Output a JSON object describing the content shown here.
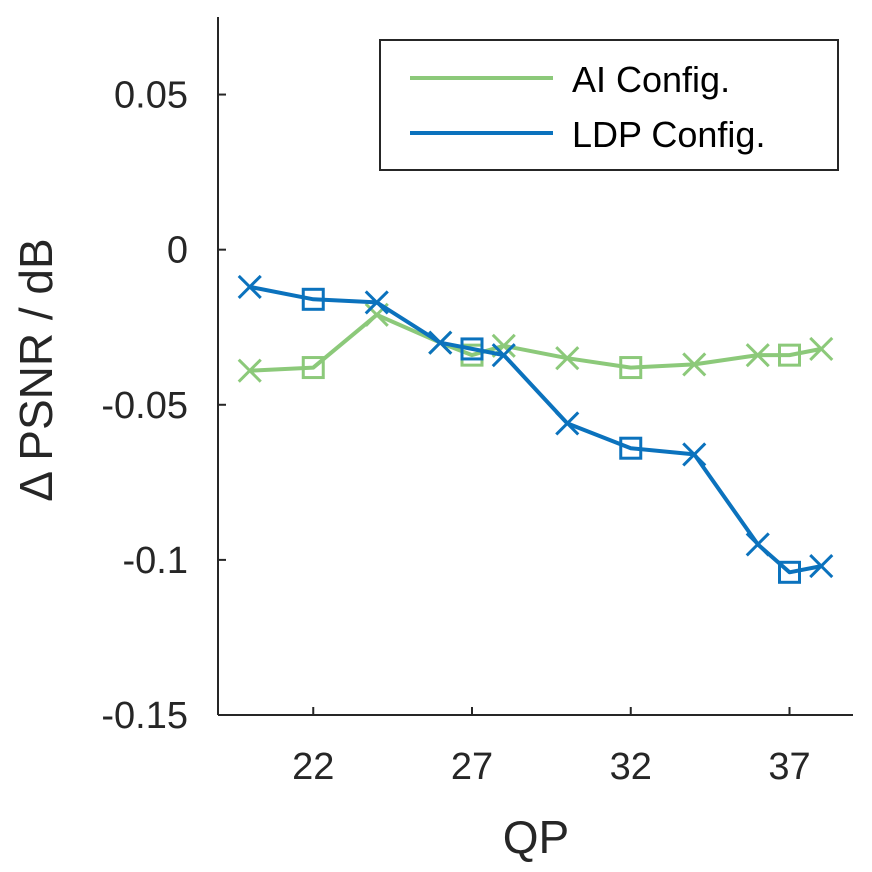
{
  "chart_data": {
    "type": "line",
    "xlabel": "QP",
    "ylabel": "Δ PSNR / dB",
    "xlim": [
      19,
      39
    ],
    "ylim": [
      -0.15,
      0.075
    ],
    "xticks": [
      22,
      27,
      32,
      37
    ],
    "yticks": [
      0.05,
      0,
      -0.05,
      -0.1,
      -0.15
    ],
    "xtick_labels": [
      "22",
      "27",
      "32",
      "37"
    ],
    "ytick_labels": [
      "0.05",
      "0",
      "-0.05",
      "-0.1",
      "-0.15"
    ],
    "legend_position": "top-right",
    "series": [
      {
        "name": "AI Config.",
        "color": "#8cc97a",
        "x": [
          20,
          22,
          24,
          26,
          27,
          28,
          30,
          32,
          34,
          36,
          37,
          38
        ],
        "y": [
          -0.039,
          -0.038,
          -0.021,
          -0.03,
          -0.034,
          -0.031,
          -0.035,
          -0.038,
          -0.037,
          -0.034,
          -0.034,
          -0.032
        ],
        "markers": [
          "x",
          "square",
          "x",
          "x",
          "square",
          "x",
          "x",
          "square",
          "x",
          "x",
          "square",
          "x"
        ]
      },
      {
        "name": "LDP Config.",
        "color": "#0b72bd",
        "x": [
          20,
          22,
          24,
          26,
          27,
          28,
          30,
          32,
          34,
          36,
          37,
          38
        ],
        "y": [
          -0.012,
          -0.016,
          -0.017,
          -0.03,
          -0.032,
          -0.034,
          -0.056,
          -0.064,
          -0.066,
          -0.095,
          -0.104,
          -0.102
        ],
        "markers": [
          "x",
          "square",
          "x",
          "x",
          "square",
          "x",
          "x",
          "square",
          "x",
          "x",
          "square",
          "x"
        ]
      }
    ]
  }
}
